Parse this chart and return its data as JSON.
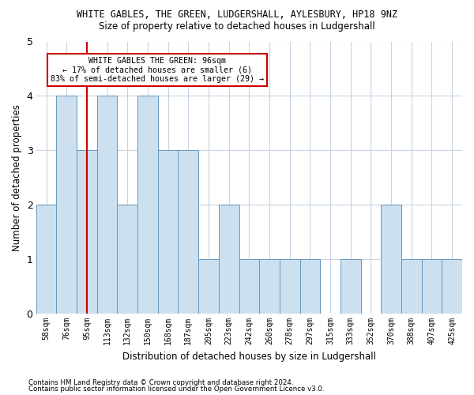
{
  "title": "WHITE GABLES, THE GREEN, LUDGERSHALL, AYLESBURY, HP18 9NZ",
  "subtitle": "Size of property relative to detached houses in Ludgershall",
  "xlabel": "Distribution of detached houses by size in Ludgershall",
  "ylabel": "Number of detached properties",
  "categories": [
    "58sqm",
    "76sqm",
    "95sqm",
    "113sqm",
    "132sqm",
    "150sqm",
    "168sqm",
    "187sqm",
    "205sqm",
    "223sqm",
    "242sqm",
    "260sqm",
    "278sqm",
    "297sqm",
    "315sqm",
    "333sqm",
    "352sqm",
    "370sqm",
    "388sqm",
    "407sqm",
    "425sqm"
  ],
  "values": [
    2,
    4,
    3,
    4,
    2,
    4,
    3,
    3,
    1,
    2,
    1,
    1,
    1,
    1,
    0,
    1,
    0,
    2,
    1,
    1,
    1
  ],
  "bar_color": "#cce0f0",
  "bar_edge_color": "#6699bb",
  "highlight_index": 2,
  "highlight_line_color": "#cc0000",
  "annotation_text": "WHITE GABLES THE GREEN: 96sqm\n← 17% of detached houses are smaller (6)\n83% of semi-detached houses are larger (29) →",
  "annotation_box_color": "#ffffff",
  "annotation_box_edge_color": "#cc0000",
  "ylim": [
    0,
    5
  ],
  "yticks": [
    0,
    1,
    2,
    3,
    4,
    5
  ],
  "footer_line1": "Contains HM Land Registry data © Crown copyright and database right 2024.",
  "footer_line2": "Contains public sector information licensed under the Open Government Licence v3.0.",
  "background_color": "#ffffff",
  "grid_color": "#c8d4e4"
}
